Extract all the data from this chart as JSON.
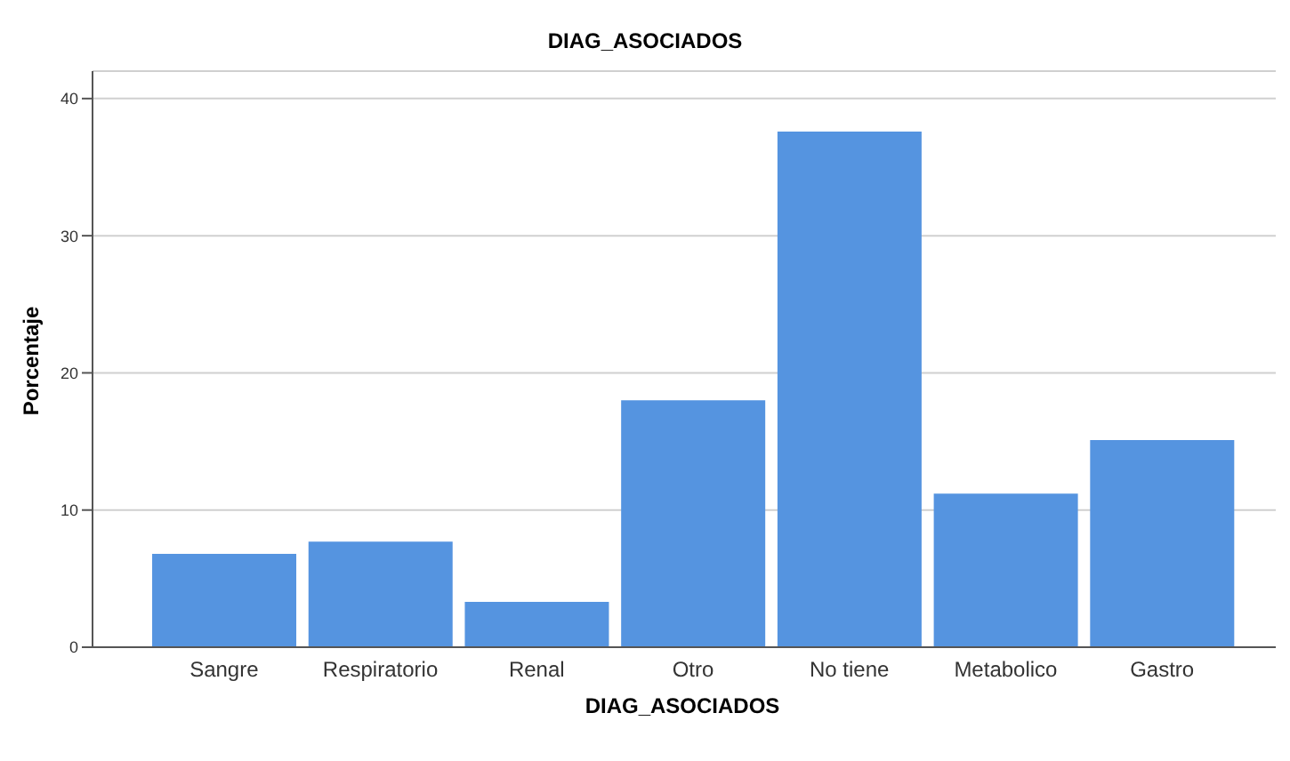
{
  "chart_data": {
    "type": "bar",
    "title": "DIAG_ASOCIADOS",
    "xlabel": "DIAG_ASOCIADOS",
    "ylabel": "Porcentaje",
    "categories": [
      "Sangre",
      "Respiratorio",
      "Renal",
      "Otro",
      "No tiene",
      "Metabolico",
      "Gastro"
    ],
    "values": [
      6.8,
      7.7,
      3.3,
      18.0,
      37.6,
      11.2,
      15.1
    ],
    "color": "#5594e0",
    "ylim": [
      0,
      42
    ],
    "yticks": [
      0,
      10,
      20,
      30,
      40
    ],
    "grid": "y"
  }
}
